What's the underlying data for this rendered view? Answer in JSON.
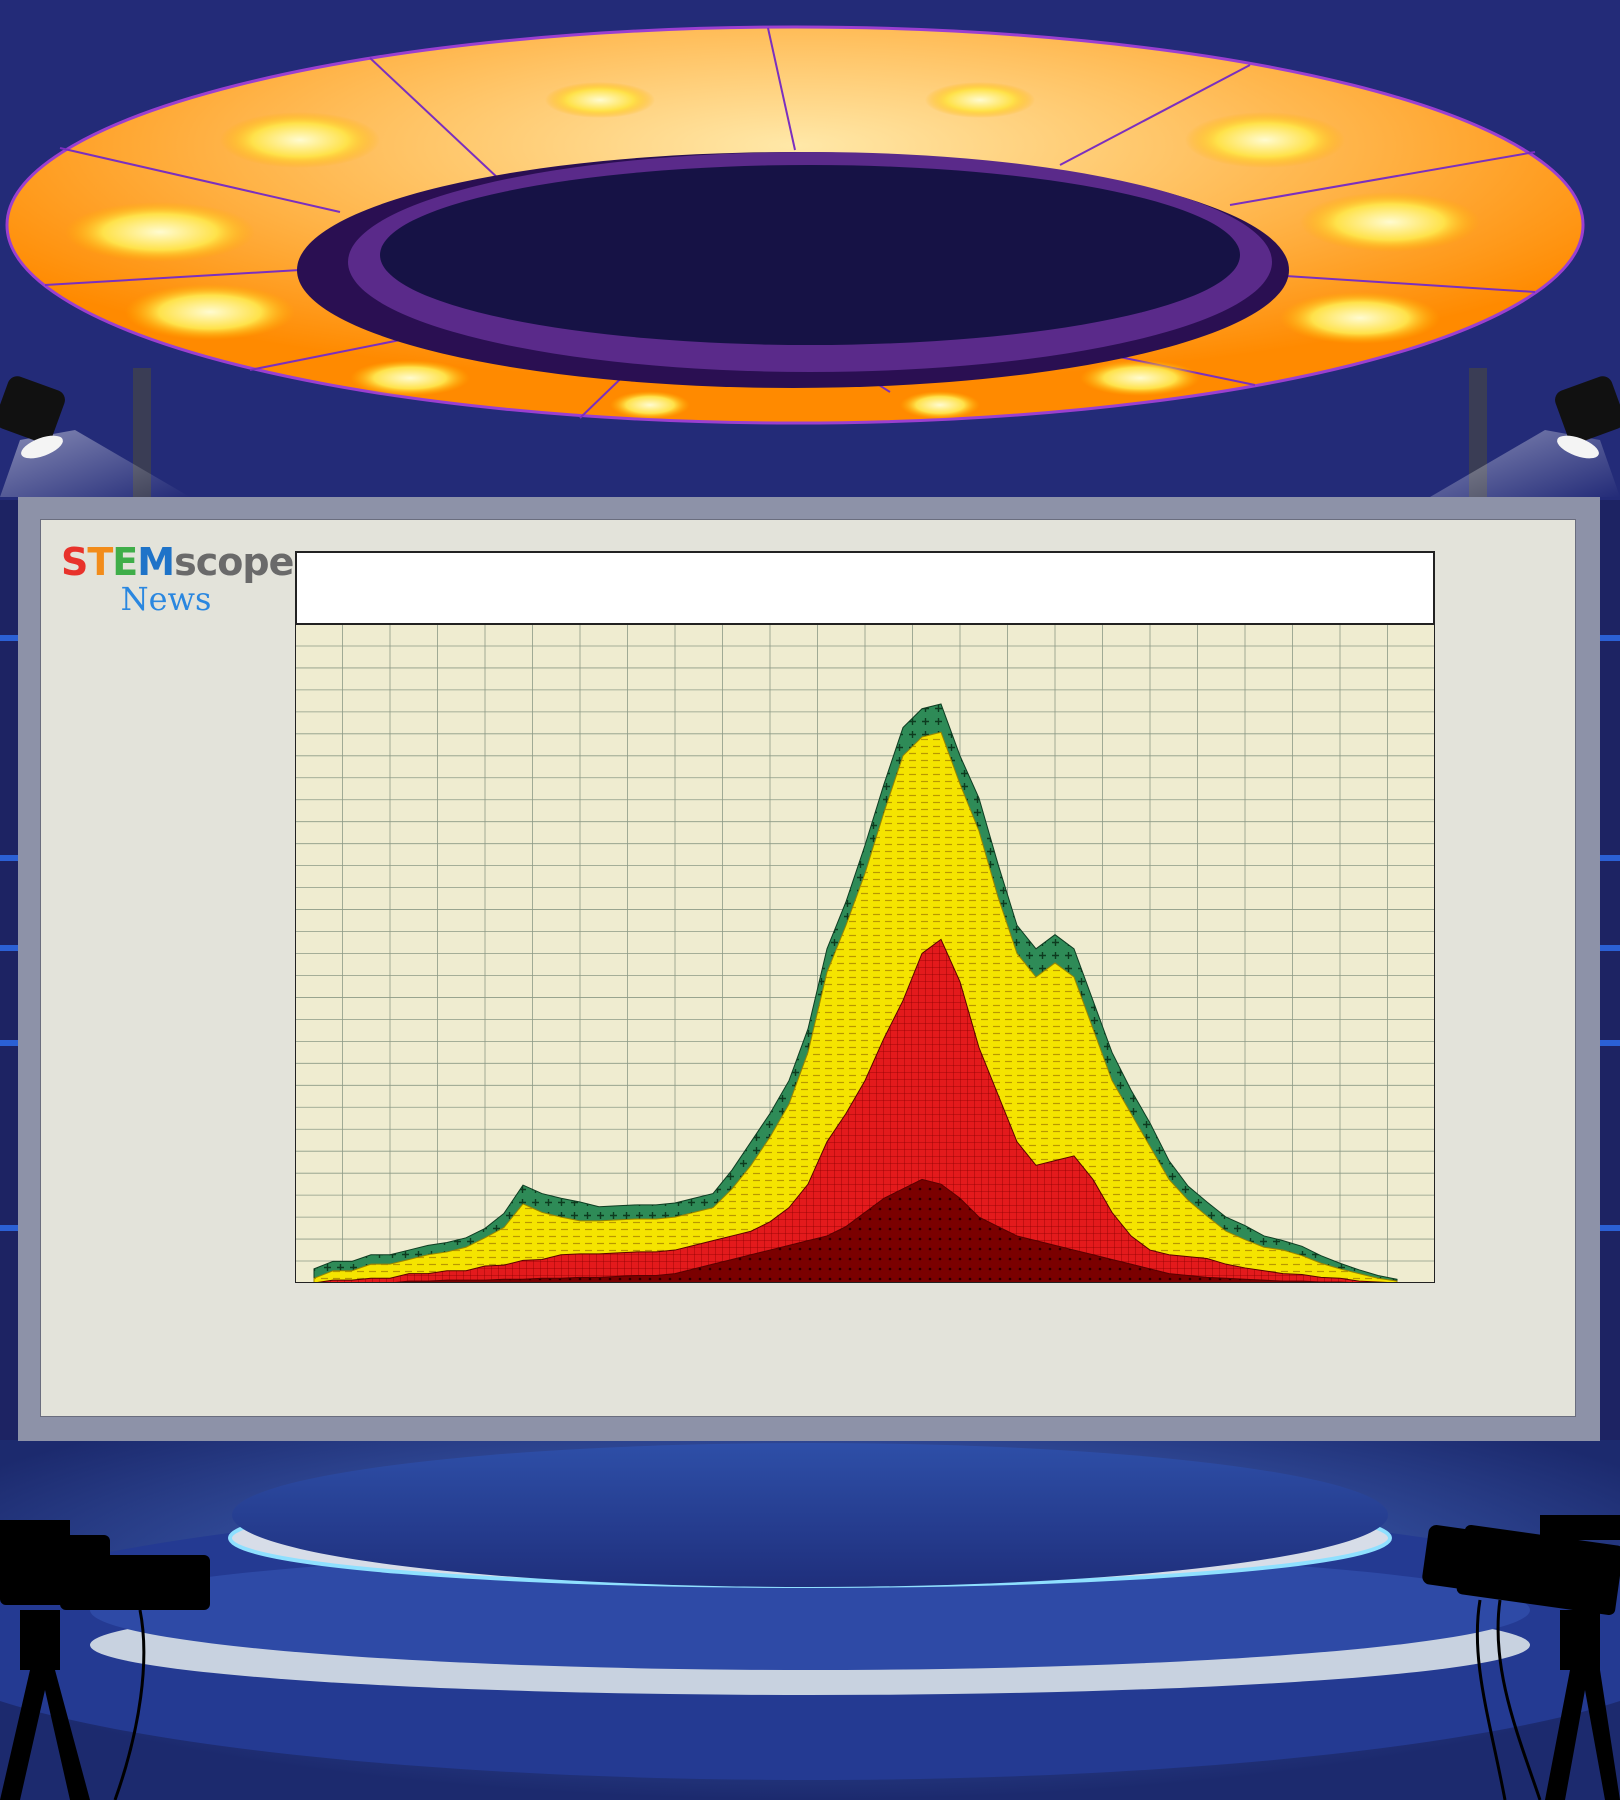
{
  "logo": {
    "brand_letters": [
      {
        "char": "S",
        "color": "#e8322b"
      },
      {
        "char": "T",
        "color": "#f28c1a"
      },
      {
        "char": "E",
        "color": "#3fae49"
      },
      {
        "char": "M",
        "color": "#1e73c8"
      },
      {
        "char": "s",
        "color": "#6a6a6a"
      },
      {
        "char": "c",
        "color": "#6a6a6a"
      },
      {
        "char": "o",
        "color": "#6a6a6a"
      },
      {
        "char": "p",
        "color": "#6a6a6a"
      },
      {
        "char": "e",
        "color": "#6a6a6a"
      },
      {
        "char": "s",
        "color": "#6a6a6a"
      }
    ],
    "trademark": "™",
    "subtitle": "News",
    "subtitle_color": "#2a87e0"
  },
  "chart_data": {
    "type": "area",
    "stacked": true,
    "title": "",
    "xlabel": "",
    "ylabel": "",
    "grid": true,
    "legend": "none",
    "xlim": [
      0,
      120
    ],
    "ylim": [
      0,
      70
    ],
    "x": [
      2,
      4,
      6,
      8,
      10,
      12,
      14,
      16,
      18,
      20,
      22,
      24,
      26,
      28,
      30,
      32,
      34,
      36,
      38,
      40,
      42,
      44,
      46,
      48,
      50,
      52,
      54,
      56,
      58,
      60,
      62,
      64,
      66,
      68,
      70,
      72,
      74,
      76,
      78,
      80,
      82,
      84,
      86,
      88,
      90,
      92,
      94,
      96,
      98,
      100,
      102,
      104,
      106,
      108,
      110,
      112,
      114,
      116
    ],
    "series": [
      {
        "name": "",
        "color": "#7a0000",
        "values": [
          0,
          0,
          0,
          0,
          0,
          0.2,
          0.2,
          0.3,
          0.3,
          0.3,
          0.4,
          0.4,
          0.5,
          0.5,
          0.6,
          0.6,
          0.7,
          0.8,
          0.8,
          1,
          1.5,
          2,
          2.5,
          3,
          3.5,
          4,
          4.5,
          5,
          6,
          7.5,
          9,
          10,
          11,
          10.5,
          9,
          7,
          6,
          5,
          4.5,
          4,
          3.5,
          3,
          2.5,
          2,
          1.5,
          1,
          0.8,
          0.6,
          0.5,
          0.4,
          0.3,
          0.2,
          0.2,
          0.1,
          0.1,
          0,
          0,
          0
        ]
      },
      {
        "name": "",
        "color": "#e31a1c",
        "values": [
          0,
          0.3,
          0.3,
          0.5,
          0.5,
          0.8,
          0.8,
          1,
          1,
          1.5,
          1.5,
          2,
          2,
          2.5,
          2.5,
          2.5,
          2.5,
          2.5,
          2.5,
          2.5,
          2.5,
          2.5,
          2.5,
          2.5,
          3,
          4,
          6,
          10,
          12,
          14,
          17,
          20,
          24,
          26,
          23,
          18,
          14,
          10,
          8,
          9,
          10,
          8,
          5,
          3,
          2,
          2,
          2,
          2,
          1.5,
          1.2,
          1,
          0.8,
          0.7,
          0.5,
          0.4,
          0.2,
          0.1,
          0
        ]
      },
      {
        "name": "",
        "color": "#f5e400",
        "values": [
          0.5,
          1,
          1,
          1.5,
          1.5,
          1.5,
          2,
          2,
          2.5,
          3,
          4,
          6,
          5,
          4,
          3.5,
          3.5,
          3.5,
          3.5,
          3.5,
          3.5,
          3.5,
          3.5,
          5,
          7,
          9,
          11,
          14,
          18,
          20,
          22,
          24,
          26,
          23,
          22,
          21,
          23,
          21,
          20,
          20,
          21,
          19,
          16,
          14,
          13,
          11,
          8,
          6,
          4.5,
          3.5,
          3,
          2.5,
          2.5,
          2,
          1.5,
          1,
          0.8,
          0.4,
          0.2
        ]
      },
      {
        "name": "",
        "color": "#2e8b57",
        "values": [
          1,
          1,
          1,
          1,
          1,
          1,
          1,
          1,
          1,
          1,
          1.5,
          2,
          2,
          2,
          2,
          1.5,
          1.5,
          1.5,
          1.5,
          1.5,
          1.5,
          1.5,
          2,
          2.5,
          2.5,
          2.5,
          2.5,
          2.5,
          2.5,
          3,
          3,
          3,
          3,
          3,
          3,
          3.5,
          3.5,
          3,
          3,
          3,
          3,
          3,
          3,
          2.5,
          2.5,
          2,
          1.5,
          1.5,
          1.5,
          1.5,
          1.2,
          1,
          1,
          0.8,
          0.6,
          0.4,
          0.3,
          0.2
        ]
      }
    ]
  }
}
